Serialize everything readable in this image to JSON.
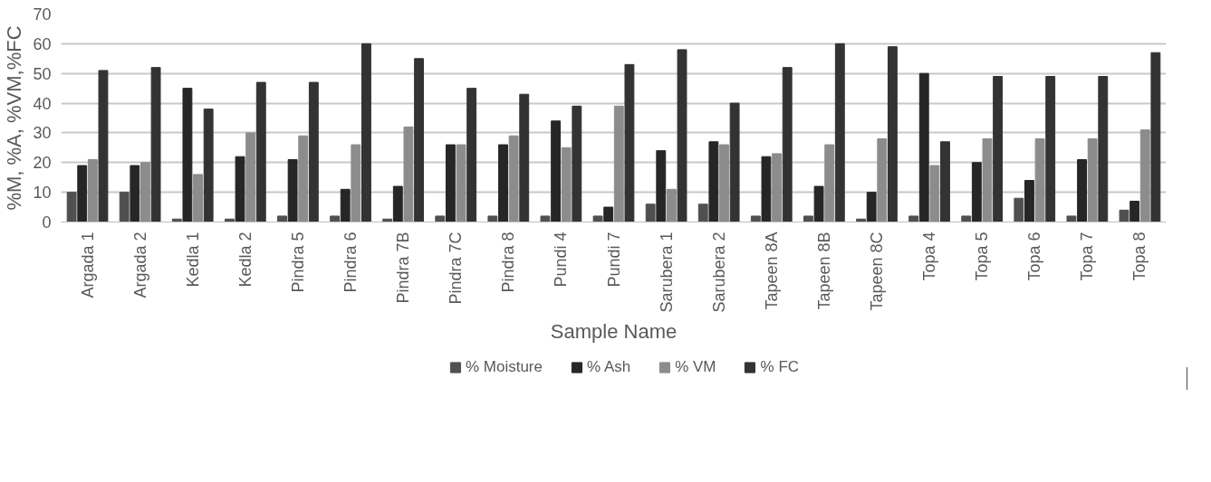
{
  "chart_data": {
    "type": "bar",
    "xlabel": "Sample Name",
    "ylabel": "%M, %A, %VM,%FC",
    "categories": [
      "Argada 1",
      "Argada 2",
      "Kedla 1",
      "Kedla 2",
      "Pindra 5",
      "Pindra 6",
      "Pindra 7B",
      "Pindra 7C",
      "Pindra 8",
      "Pundi 4",
      "Pundi 7",
      "Sarubera 1",
      "Sarubera 2",
      "Tapeen 8A",
      "Tapeen 8B",
      "Tapeen 8C",
      "Topa 4",
      "Topa 5",
      "Topa 6",
      "Topa 7",
      "Topa 8"
    ],
    "series": [
      {
        "name": "% Moisture",
        "color": "#505050",
        "values": [
          10,
          10,
          1,
          1,
          2,
          2,
          1,
          2,
          2,
          2,
          2,
          6,
          6,
          2,
          2,
          1,
          2,
          2,
          8,
          2,
          4
        ]
      },
      {
        "name": "% Ash",
        "color": "#262626",
        "values": [
          19,
          19,
          45,
          22,
          21,
          11,
          12,
          26,
          26,
          34,
          5,
          24,
          27,
          22,
          12,
          10,
          50,
          20,
          14,
          21,
          7
        ]
      },
      {
        "name": "% VM",
        "color": "#8c8c8c",
        "values": [
          21,
          20,
          16,
          30,
          29,
          26,
          32,
          26,
          29,
          25,
          39,
          11,
          26,
          23,
          26,
          28,
          19,
          28,
          28,
          28,
          31
        ]
      },
      {
        "name": "% FC",
        "color": "#333333",
        "values": [
          51,
          52,
          38,
          47,
          47,
          60,
          55,
          45,
          43,
          39,
          53,
          58,
          40,
          52,
          60,
          59,
          27,
          49,
          49,
          49,
          57
        ]
      }
    ],
    "ylim": [
      0,
      70
    ],
    "yticks": [
      0,
      10,
      20,
      30,
      40,
      50,
      60,
      70
    ],
    "grid": "y",
    "legend": "bottom"
  }
}
